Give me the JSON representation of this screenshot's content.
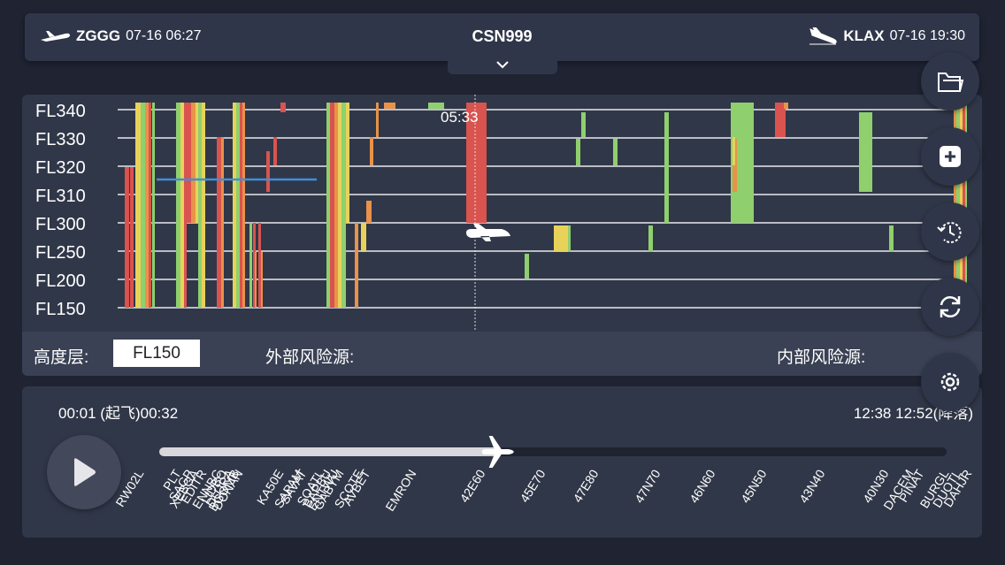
{
  "header": {
    "departure": {
      "code": "ZGGG",
      "time": "07-16 06:27",
      "icon": "takeoff-icon"
    },
    "flight": "CSN999",
    "arrival": {
      "code": "KLAX",
      "time": "07-16 19:30",
      "icon": "landing-icon"
    },
    "toggle_icon": "chevron-down-icon"
  },
  "chart": {
    "levels": [
      "FL340",
      "FL330",
      "FL320",
      "FL310",
      "FL300",
      "FL250",
      "FL200",
      "FL150"
    ],
    "current_time": "05:33",
    "colors": {
      "red": "#d9534f",
      "orange": "#e8924a",
      "yellow": "#e8d25a",
      "green": "#8fcf6e",
      "route": "#3f8fd8"
    }
  },
  "info": {
    "altitude_label": "高度层:",
    "altitude_value": "FL150",
    "external_label": "外部风险源:",
    "internal_label": "内部风险源:"
  },
  "timeline": {
    "start_time": "00:01",
    "start_note": "(起飞)",
    "start_time2": "00:32",
    "end_time1": "12:38",
    "end_time2": "12:52",
    "end_note": "(降落)",
    "progress": 0.43,
    "waypoints": [
      "RW02L",
      "PLT",
      "SAGP",
      "XEBGA",
      "EDITR",
      "ENNBC",
      "LIDBO",
      "DUJRA",
      "BGOMB",
      "DONAN",
      "KA50E",
      "SAPAM",
      "SAVAT",
      "SOATL",
      "BAPBU",
      "ENTWU",
      "GABYM",
      "SCOTE",
      "AVBET",
      "EMRON",
      "42E60",
      "45E70",
      "47E80",
      "47N70",
      "46N60",
      "45N50",
      "43N40",
      "40N30",
      "DACEM",
      "PINAT",
      "BURGL",
      "DUOTL",
      "DAHJR"
    ]
  },
  "side_buttons": [
    "folder-open-icon",
    "add-icon",
    "history-icon",
    "refresh-icon",
    "settings-icon"
  ]
}
